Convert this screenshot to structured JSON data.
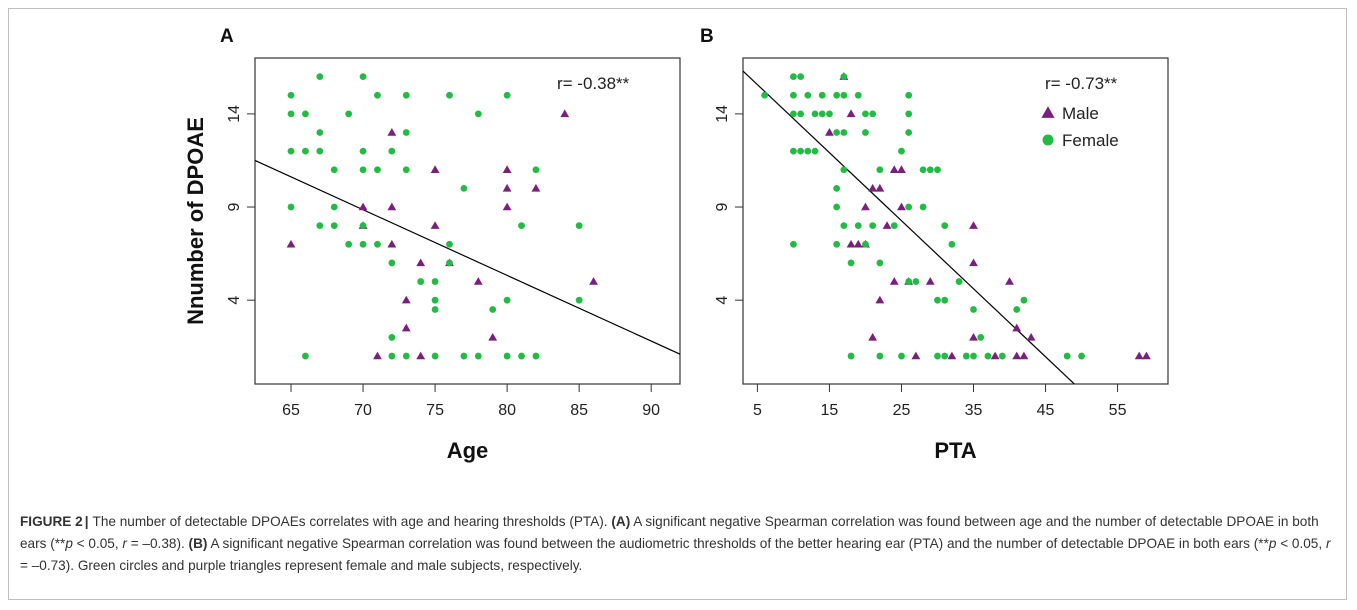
{
  "figure": {
    "label": "FIGURE 2",
    "caption": {
      "lead": "The number of detectable DPOAEs correlates with age and hearing thresholds (PTA).",
      "a_label": "(A)",
      "a_text_1": "A significant negative Spearman correlation was found between age and the number of detectable DPOAE in both ears (**",
      "a_p": "p",
      "a_text_2": " < 0.05, ",
      "a_r": "r",
      "a_text_3": " = –0.38).",
      "b_label": "(B)",
      "b_text_1": "A significant negative Spearman correlation was found between the audiometric thresholds of the better hearing ear (PTA) and the number of detectable DPOAE in both ears (**",
      "b_p": "p",
      "b_text_2": " < 0.05, ",
      "b_r": "r",
      "b_text_3": " = –0.73). Green circles and purple triangles represent female and male subjects, respectively."
    }
  },
  "colors": {
    "male": "#7b1f7e",
    "female": "#22bb44",
    "axis": "#333333",
    "fit_line": "#000000"
  },
  "chart_data": [
    {
      "type": "scatter",
      "panel": "A",
      "xlabel": "Age",
      "ylabel": "Nnumber of DPOAE",
      "annotation": "r= -0.38**",
      "xlim": [
        62.5,
        92
      ],
      "ylim": [
        -0.5,
        17
      ],
      "xticks": [
        65,
        70,
        75,
        80,
        85,
        90
      ],
      "yticks": [
        4,
        9,
        14
      ],
      "regression": {
        "x1": 62.5,
        "y1": 11.5,
        "x2": 92,
        "y2": 1.1
      },
      "series": [
        {
          "name": "Male",
          "marker": "triangle",
          "points": [
            [
              65,
              7
            ],
            [
              70,
              9
            ],
            [
              70,
              8
            ],
            [
              72,
              13
            ],
            [
              72,
              9
            ],
            [
              72,
              7
            ],
            [
              73,
              4
            ],
            [
              73,
              2.5
            ],
            [
              74,
              6
            ],
            [
              75,
              11
            ],
            [
              75,
              8
            ],
            [
              76,
              6
            ],
            [
              78,
              5
            ],
            [
              79,
              2
            ],
            [
              80,
              11
            ],
            [
              80,
              10
            ],
            [
              80,
              9
            ],
            [
              82,
              10
            ],
            [
              84,
              14
            ],
            [
              86,
              5
            ],
            [
              71,
              1
            ],
            [
              74,
              1
            ]
          ]
        },
        {
          "name": "Female",
          "marker": "circle",
          "points": [
            [
              65,
              15
            ],
            [
              65,
              14
            ],
            [
              65,
              12
            ],
            [
              65,
              9
            ],
            [
              66,
              14
            ],
            [
              66,
              12
            ],
            [
              66,
              1
            ],
            [
              67,
              16
            ],
            [
              67,
              13
            ],
            [
              67,
              12
            ],
            [
              67,
              8
            ],
            [
              68,
              11
            ],
            [
              68,
              9
            ],
            [
              68,
              8
            ],
            [
              69,
              14
            ],
            [
              69,
              7
            ],
            [
              70,
              16
            ],
            [
              70,
              12
            ],
            [
              70,
              11
            ],
            [
              70,
              8
            ],
            [
              70,
              7
            ],
            [
              71,
              15
            ],
            [
              71,
              11
            ],
            [
              71,
              7
            ],
            [
              72,
              12
            ],
            [
              72,
              6
            ],
            [
              72,
              2
            ],
            [
              72,
              1
            ],
            [
              73,
              15
            ],
            [
              73,
              13
            ],
            [
              73,
              11
            ],
            [
              73,
              1
            ],
            [
              74,
              5
            ],
            [
              75,
              5
            ],
            [
              75,
              4
            ],
            [
              75,
              3.5
            ],
            [
              75,
              1
            ],
            [
              76,
              15
            ],
            [
              76,
              7
            ],
            [
              76,
              6
            ],
            [
              77,
              10
            ],
            [
              77,
              1
            ],
            [
              78,
              14
            ],
            [
              78,
              1
            ],
            [
              79,
              3.5
            ],
            [
              80,
              15
            ],
            [
              80,
              4
            ],
            [
              80,
              1
            ],
            [
              81,
              8
            ],
            [
              81,
              1
            ],
            [
              82,
              11
            ],
            [
              82,
              1
            ],
            [
              85,
              8
            ],
            [
              85,
              4
            ]
          ]
        }
      ]
    },
    {
      "type": "scatter",
      "panel": "B",
      "xlabel": "PTA",
      "annotation": "r= -0.73**",
      "legend": [
        "Male",
        "Female"
      ],
      "legend_position": "top-right",
      "xlim": [
        3,
        62
      ],
      "ylim": [
        -0.5,
        17
      ],
      "xticks": [
        5,
        15,
        25,
        35,
        45,
        55
      ],
      "yticks": [
        4,
        9,
        14
      ],
      "regression": {
        "x1": 3,
        "y1": 16.3,
        "x2": 49,
        "y2": -0.5
      },
      "series": [
        {
          "name": "Male",
          "marker": "triangle",
          "points": [
            [
              15,
              13
            ],
            [
              17,
              16
            ],
            [
              18,
              14
            ],
            [
              18,
              7
            ],
            [
              19,
              7
            ],
            [
              20,
              9
            ],
            [
              20,
              7
            ],
            [
              21,
              10
            ],
            [
              21,
              2
            ],
            [
              22,
              10
            ],
            [
              22,
              4
            ],
            [
              23,
              8
            ],
            [
              24,
              11
            ],
            [
              24,
              5
            ],
            [
              25,
              11
            ],
            [
              25,
              9
            ],
            [
              26,
              5
            ],
            [
              27,
              1
            ],
            [
              29,
              5
            ],
            [
              32,
              1
            ],
            [
              35,
              8
            ],
            [
              35,
              6
            ],
            [
              35,
              2
            ],
            [
              38,
              1
            ],
            [
              40,
              5
            ],
            [
              41,
              2.5
            ],
            [
              41,
              1
            ],
            [
              42,
              1
            ],
            [
              43,
              2
            ],
            [
              58,
              1
            ],
            [
              59,
              1
            ]
          ]
        },
        {
          "name": "Female",
          "marker": "circle",
          "points": [
            [
              6,
              15
            ],
            [
              10,
              16
            ],
            [
              10,
              15
            ],
            [
              10,
              14
            ],
            [
              10,
              12
            ],
            [
              10,
              7
            ],
            [
              11,
              16
            ],
            [
              11,
              14
            ],
            [
              11,
              12
            ],
            [
              12,
              15
            ],
            [
              12,
              12
            ],
            [
              13,
              14
            ],
            [
              13,
              12
            ],
            [
              14,
              15
            ],
            [
              14,
              14
            ],
            [
              15,
              14
            ],
            [
              16,
              15
            ],
            [
              16,
              13
            ],
            [
              16,
              10
            ],
            [
              16,
              9
            ],
            [
              16,
              7
            ],
            [
              17,
              16
            ],
            [
              17,
              15
            ],
            [
              17,
              13
            ],
            [
              17,
              11
            ],
            [
              17,
              8
            ],
            [
              18,
              6
            ],
            [
              18,
              1
            ],
            [
              19,
              15
            ],
            [
              19,
              8
            ],
            [
              20,
              14
            ],
            [
              20,
              13
            ],
            [
              20,
              7
            ],
            [
              21,
              14
            ],
            [
              21,
              8
            ],
            [
              22,
              11
            ],
            [
              22,
              6
            ],
            [
              22,
              1
            ],
            [
              24,
              8
            ],
            [
              25,
              12
            ],
            [
              25,
              1
            ],
            [
              26,
              15
            ],
            [
              26,
              14
            ],
            [
              26,
              13
            ],
            [
              26,
              9
            ],
            [
              26,
              5
            ],
            [
              27,
              5
            ],
            [
              28,
              11
            ],
            [
              28,
              9
            ],
            [
              29,
              11
            ],
            [
              30,
              11
            ],
            [
              30,
              4
            ],
            [
              30,
              1
            ],
            [
              31,
              8
            ],
            [
              31,
              4
            ],
            [
              31,
              1
            ],
            [
              32,
              7
            ],
            [
              33,
              5
            ],
            [
              34,
              1
            ],
            [
              35,
              3.5
            ],
            [
              35,
              1
            ],
            [
              36,
              2
            ],
            [
              37,
              1
            ],
            [
              39,
              1
            ],
            [
              41,
              3.5
            ],
            [
              42,
              4
            ],
            [
              48,
              1
            ],
            [
              50,
              1
            ]
          ]
        }
      ]
    }
  ]
}
